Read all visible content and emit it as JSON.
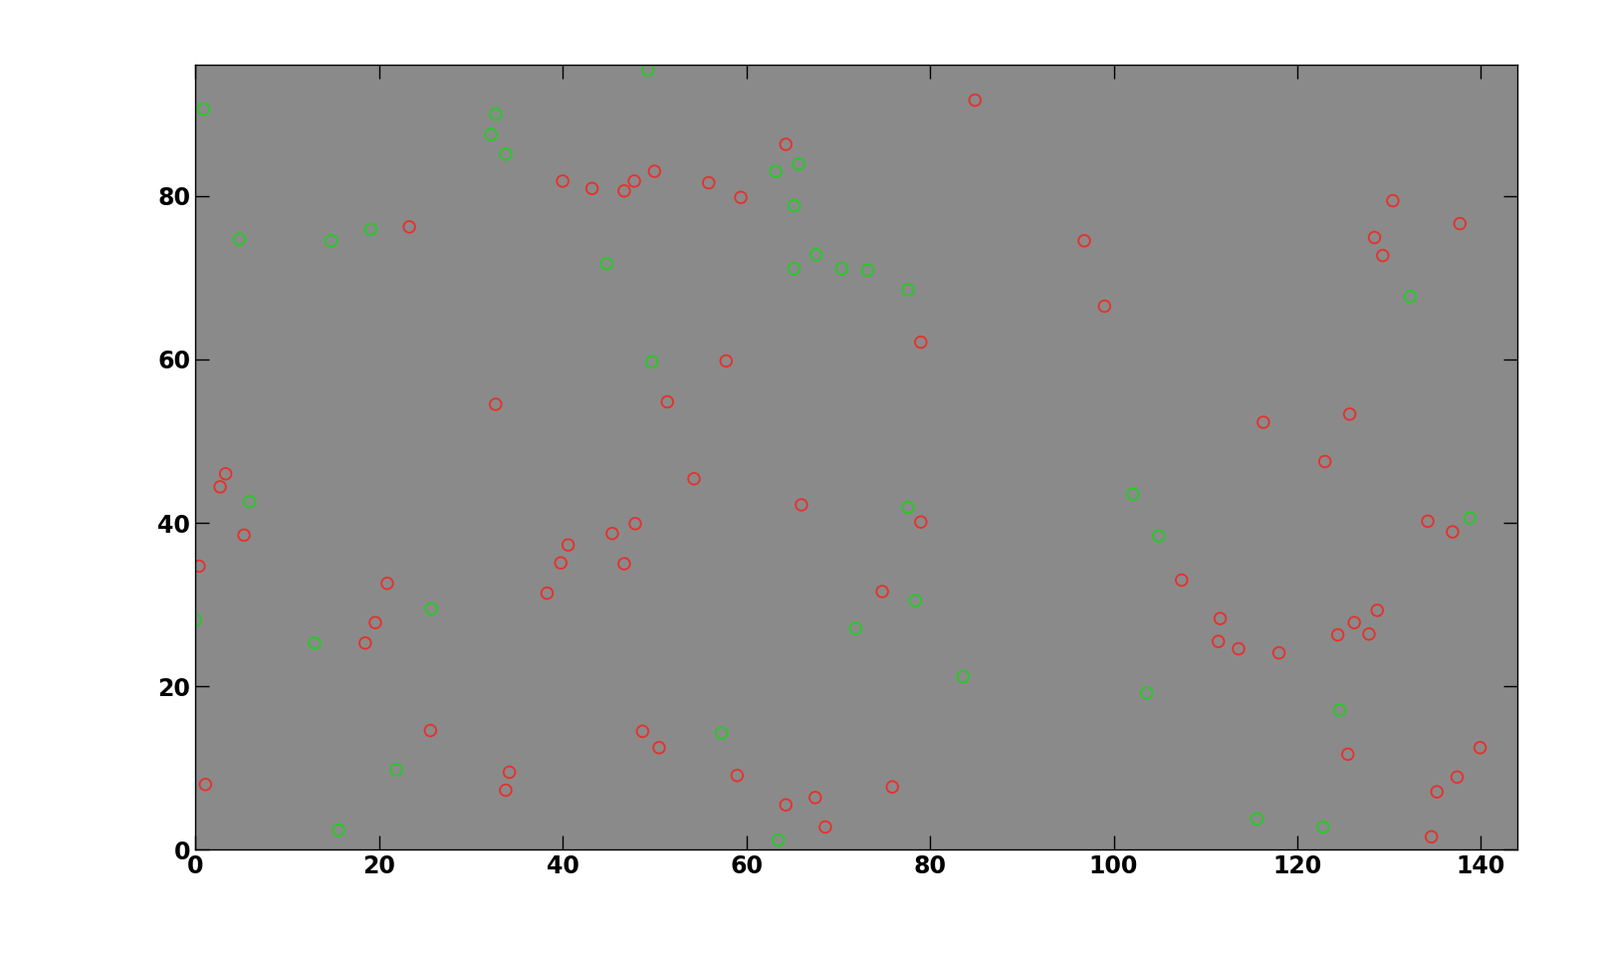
{
  "chart_data": {
    "type": "scatter",
    "xlim": [
      0,
      144
    ],
    "ylim": [
      0,
      96
    ],
    "xticks": [
      0,
      20,
      40,
      60,
      80,
      100,
      120,
      140
    ],
    "yticks": [
      0,
      20,
      40,
      60,
      80
    ],
    "series": [
      {
        "color": "#e8302a",
        "marker": "o",
        "x": [
          40,
          43.2,
          46.7,
          47.8,
          50,
          55.9,
          59.4,
          64.3,
          84.9,
          23.3,
          96.8,
          99,
          79,
          57.8,
          32.7,
          51.4,
          54.3,
          66,
          79,
          45.4,
          47.9,
          46.7,
          40.6,
          39.8,
          38.3,
          74.8,
          3.3,
          2.7,
          5.3,
          0.4,
          20.9,
          19.6,
          18.5,
          25.6,
          34.2,
          33.8,
          1.1,
          48.7,
          50.5,
          59,
          67.5,
          64.3,
          68.6,
          75.9,
          116.3,
          125.7,
          123,
          107.4,
          111.6,
          111.4,
          113.6,
          118,
          124.4,
          126.2,
          127.8,
          128.7,
          125.5,
          130.4,
          128.4,
          129.3,
          137.7,
          134.2,
          136.9,
          139.9,
          137.4,
          135.2,
          134.6
        ],
        "y": [
          81.8,
          80.9,
          80.6,
          81.8,
          83,
          81.6,
          79.8,
          86.3,
          91.7,
          76.2,
          74.5,
          66.5,
          62.1,
          59.8,
          54.5,
          54.8,
          45.4,
          42.2,
          40.1,
          38.7,
          39.9,
          35,
          37.3,
          35.1,
          31.4,
          31.6,
          46,
          44.4,
          38.5,
          34.7,
          32.6,
          27.8,
          25.3,
          14.6,
          9.5,
          7.3,
          8,
          14.5,
          12.5,
          9.1,
          6.4,
          5.5,
          2.8,
          7.7,
          52.3,
          53.3,
          47.5,
          33,
          28.3,
          25.5,
          24.6,
          24.1,
          26.3,
          27.8,
          26.4,
          29.3,
          11.7,
          79.4,
          74.9,
          72.7,
          76.6,
          40.2,
          38.9,
          12.5,
          8.9,
          7.1,
          1.6
        ]
      },
      {
        "color": "#22cc22",
        "marker": "o",
        "x": [
          0.9,
          32.7,
          32.2,
          33.8,
          49.3,
          63.2,
          65.7,
          65.2,
          4.8,
          14.8,
          19.1,
          44.8,
          65.2,
          67.6,
          70.4,
          73.2,
          77.6,
          49.7,
          132.3,
          102.1,
          77.6,
          104.9,
          5.9,
          25.7,
          13,
          78.4,
          71.9,
          83.6,
          103.6,
          124.6,
          138.8,
          57.3,
          21.9,
          15.6,
          63.5,
          115.6,
          122.8,
          0
        ],
        "y": [
          90.6,
          90,
          87.5,
          85.1,
          95.4,
          83,
          83.9,
          78.8,
          74.7,
          74.5,
          75.9,
          71.7,
          71.1,
          72.8,
          71.1,
          70.9,
          68.5,
          59.7,
          67.7,
          43.5,
          41.9,
          38.4,
          42.6,
          29.5,
          25.3,
          30.5,
          27.1,
          21.2,
          19.2,
          17.1,
          40.6,
          14.3,
          9.8,
          2.4,
          1.2,
          3.8,
          2.8,
          28.1
        ]
      }
    ]
  }
}
